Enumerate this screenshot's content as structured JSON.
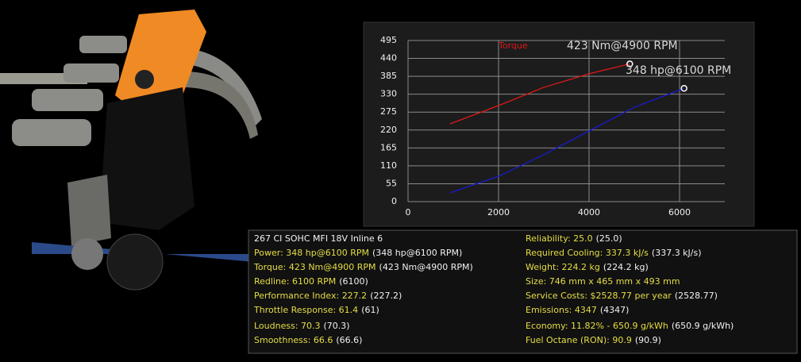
{
  "chart_data": {
    "type": "line",
    "series": [
      {
        "name": "Torque",
        "color": "#e01818",
        "x": [
          930,
          2000,
          3000,
          4000,
          4900
        ],
        "values": [
          239,
          295,
          351,
          393,
          423
        ]
      },
      {
        "color": "#1a1ad0",
        "x": [
          930,
          2000,
          3000,
          4000,
          5000,
          6100
        ],
        "values": [
          27,
          78,
          144,
          217,
          290,
          348
        ]
      }
    ],
    "annotations": [
      "423 Nm@4900 RPM",
      "348 hp@6100 RPM"
    ],
    "xlim": [
      0,
      7000
    ],
    "xticks": [
      0,
      2000,
      4000,
      6000
    ],
    "ylim": [
      0,
      495
    ],
    "yticks": [
      0,
      55,
      110,
      165,
      220,
      275,
      330,
      385,
      440,
      495
    ],
    "grid": true
  },
  "stats": {
    "title": "267 CI SOHC MFI 18V Inline 6",
    "left": [
      {
        "text": "Power: 348 hp@6100 RPM",
        "extra": "(348 hp@6100 RPM)"
      },
      {
        "text": "Torque: 423 Nm@4900 RPM",
        "extra": "(423 Nm@4900 RPM)"
      },
      {
        "text": "Redline: 6100 RPM",
        "extra": "(6100)"
      },
      {
        "text": "Performance Index: 227.2",
        "extra": "(227.2)"
      },
      {
        "text": "Throttle Response: 61.4",
        "extra": "(61)"
      },
      {
        "text": "Loudness: 70.3",
        "extra": "(70.3)"
      },
      {
        "text": "Smoothness: 66.6",
        "extra": "(66.6)"
      }
    ],
    "right": [
      {
        "text": "Reliability: 25.0",
        "extra": "(25.0)"
      },
      {
        "text": "Required Cooling: 337.3 kJ/s",
        "extra": "(337.3 kJ/s)"
      },
      {
        "text": "Weight: 224.2 kg",
        "extra": "(224.2 kg)"
      },
      {
        "text": "Size: 746 mm x 465 mm x 493 mm"
      },
      {
        "text": "Service Costs: $2528.77 per year",
        "extra": "(2528.77)"
      },
      {
        "text": "Emissions: 4347",
        "extra": "(4347)"
      },
      {
        "text": "Economy: 11.82% - 650.9 g/kWh",
        "extra": "(650.9 g/kWh)"
      },
      {
        "text": "Fuel Octane (RON): 90.9",
        "extra": "(90.9)"
      }
    ]
  }
}
